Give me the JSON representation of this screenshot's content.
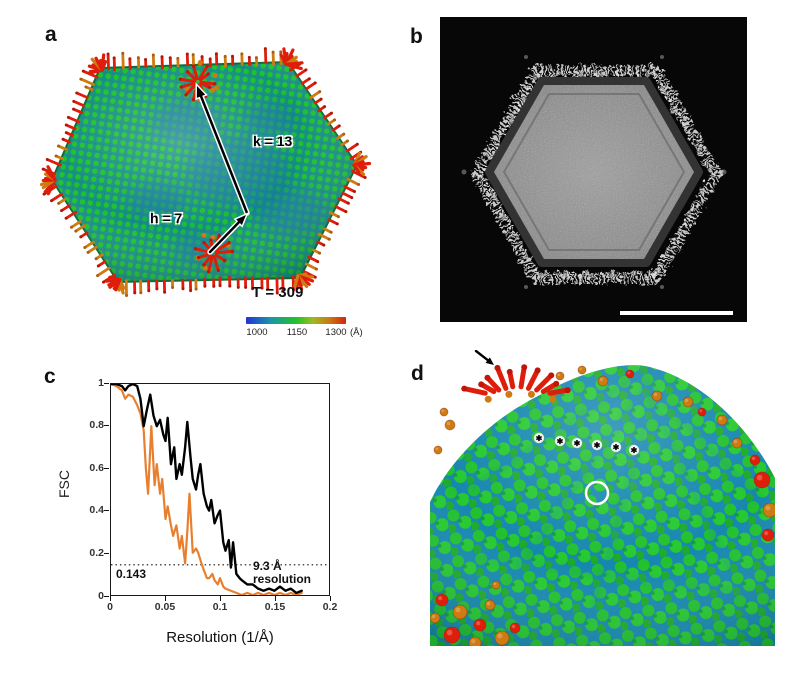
{
  "panel_a": {
    "label": "a",
    "k_arrow_label": "k = 13",
    "h_arrow_label": "h = 7",
    "t_number_label": "T = 309",
    "colorbar": {
      "tick_labels": [
        "1000",
        "1150",
        "1300"
      ],
      "unit_label": "(Å)",
      "gradient_colors": [
        "#2034d6",
        "#1c96a6",
        "#21c22c",
        "#9fb922",
        "#c97714",
        "#d6220e"
      ]
    },
    "surface_colors": {
      "capsomer_green": "#1ec42e",
      "inter_capsomer_blue": "#1787b0",
      "fiber_red": "#df1d0b",
      "fiber_orange": "#cf7a12"
    }
  },
  "panel_b": {
    "label": "b"
  },
  "panel_c": {
    "label": "c"
  },
  "panel_d": {
    "label": "d",
    "asterisk_glyph": "✱",
    "asterisk_count": 6
  },
  "chart_data": {
    "type": "line",
    "title": "",
    "xlabel": "Resolution (1/Å)",
    "ylabel": "FSC",
    "xlim": [
      0,
      0.2
    ],
    "ylim": [
      0,
      1
    ],
    "grid": false,
    "legend": "none",
    "x_ticks": [
      0,
      0.05,
      0.1,
      0.15,
      0.2
    ],
    "x_tick_labels": [
      "0",
      "0.05",
      "0.1",
      "0.15",
      "0.2"
    ],
    "y_ticks": [
      1,
      0.8,
      0.6,
      0.4,
      0.2,
      0
    ],
    "y_tick_labels": [
      "1",
      "0.8",
      "0.6",
      "0.4",
      "0.2",
      "0"
    ],
    "threshold": {
      "value": 0.143,
      "label": "0.143",
      "style": "dotted"
    },
    "annotation": {
      "line1": "9.3 Å",
      "line2": "resolution"
    },
    "series": [
      {
        "name": "black curve",
        "color": "#000000",
        "points": [
          [
            0,
            1
          ],
          [
            0.005,
            1
          ],
          [
            0.01,
            0.99
          ],
          [
            0.013,
            0.97
          ],
          [
            0.016,
            0.99
          ],
          [
            0.02,
            1
          ],
          [
            0.024,
            0.99
          ],
          [
            0.027,
            0.93
          ],
          [
            0.03,
            0.8
          ],
          [
            0.033,
            0.88
          ],
          [
            0.036,
            0.95
          ],
          [
            0.039,
            0.85
          ],
          [
            0.042,
            0.8
          ],
          [
            0.045,
            0.83
          ],
          [
            0.048,
            0.76
          ],
          [
            0.05,
            0.73
          ],
          [
            0.052,
            0.84
          ],
          [
            0.055,
            0.62
          ],
          [
            0.058,
            0.7
          ],
          [
            0.06,
            0.55
          ],
          [
            0.063,
            0.62
          ],
          [
            0.065,
            0.57
          ],
          [
            0.068,
            0.7
          ],
          [
            0.07,
            0.82
          ],
          [
            0.073,
            0.65
          ],
          [
            0.075,
            0.55
          ],
          [
            0.078,
            0.5
          ],
          [
            0.08,
            0.57
          ],
          [
            0.082,
            0.62
          ],
          [
            0.085,
            0.48
          ],
          [
            0.088,
            0.42
          ],
          [
            0.09,
            0.4
          ],
          [
            0.092,
            0.45
          ],
          [
            0.095,
            0.34
          ],
          [
            0.098,
            0.38
          ],
          [
            0.1,
            0.4
          ],
          [
            0.103,
            0.25
          ],
          [
            0.105,
            0.21
          ],
          [
            0.108,
            0.26
          ],
          [
            0.11,
            0.13
          ],
          [
            0.112,
            0.25
          ],
          [
            0.115,
            0.1
          ],
          [
            0.118,
            0.08
          ],
          [
            0.12,
            0.07
          ],
          [
            0.125,
            0.05
          ],
          [
            0.13,
            0.05
          ],
          [
            0.135,
            0.03
          ],
          [
            0.14,
            0.02
          ],
          [
            0.145,
            0.03
          ],
          [
            0.15,
            0.02
          ],
          [
            0.155,
            0.04
          ],
          [
            0.16,
            0.02
          ],
          [
            0.165,
            0.03
          ],
          [
            0.17,
            0.01
          ],
          [
            0.175,
            0.02
          ]
        ]
      },
      {
        "name": "orange curve",
        "color": "#e87f2f",
        "points": [
          [
            0,
            1
          ],
          [
            0.005,
            0.99
          ],
          [
            0.01,
            0.97
          ],
          [
            0.013,
            0.93
          ],
          [
            0.016,
            0.95
          ],
          [
            0.02,
            0.94
          ],
          [
            0.024,
            0.9
          ],
          [
            0.027,
            0.86
          ],
          [
            0.03,
            0.78
          ],
          [
            0.032,
            0.6
          ],
          [
            0.034,
            0.48
          ],
          [
            0.037,
            0.8
          ],
          [
            0.04,
            0.52
          ],
          [
            0.042,
            0.62
          ],
          [
            0.045,
            0.48
          ],
          [
            0.047,
            0.55
          ],
          [
            0.05,
            0.36
          ],
          [
            0.052,
            0.42
          ],
          [
            0.055,
            0.33
          ],
          [
            0.057,
            0.28
          ],
          [
            0.06,
            0.33
          ],
          [
            0.063,
            0.22
          ],
          [
            0.065,
            0.28
          ],
          [
            0.068,
            0.15
          ],
          [
            0.07,
            0.3
          ],
          [
            0.072,
            0.48
          ],
          [
            0.075,
            0.2
          ],
          [
            0.078,
            0.22
          ],
          [
            0.08,
            0.2
          ],
          [
            0.083,
            0.15
          ],
          [
            0.085,
            0.12
          ],
          [
            0.088,
            0.08
          ],
          [
            0.09,
            0.08
          ],
          [
            0.093,
            0.1
          ],
          [
            0.095,
            0.07
          ],
          [
            0.098,
            0.05
          ],
          [
            0.1,
            0.08
          ],
          [
            0.103,
            0.04
          ],
          [
            0.105,
            0.03
          ],
          [
            0.11,
            0.02
          ],
          [
            0.115,
            0.01
          ],
          [
            0.12,
            0
          ],
          [
            0.125,
            0.01
          ],
          [
            0.13,
            0
          ],
          [
            0.135,
            0.01
          ],
          [
            0.14,
            0
          ],
          [
            0.145,
            0.01
          ],
          [
            0.15,
            0
          ],
          [
            0.155,
            0.01
          ],
          [
            0.16,
            0
          ],
          [
            0.165,
            0.01
          ],
          [
            0.17,
            0
          ],
          [
            0.175,
            0.01
          ]
        ]
      }
    ]
  }
}
